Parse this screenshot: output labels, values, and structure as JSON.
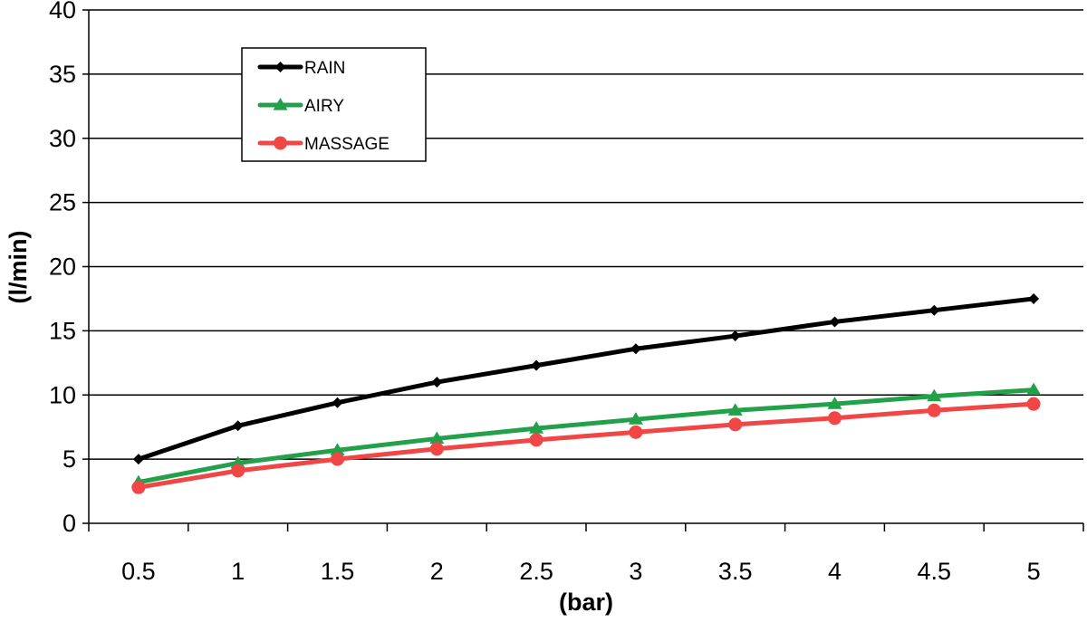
{
  "chart_data": {
    "type": "line",
    "xlabel": "(bar)",
    "ylabel": "(l/min)",
    "categories": [
      "0.5",
      "1",
      "1.5",
      "2",
      "2.5",
      "3",
      "3.5",
      "4",
      "4.5",
      "5"
    ],
    "ylim": [
      0,
      40
    ],
    "yticks": [
      "0",
      "5",
      "10",
      "15",
      "20",
      "25",
      "30",
      "35",
      "40"
    ],
    "grid": "horizontal",
    "legend": "top-left",
    "series": [
      {
        "name": "RAIN",
        "color": "#000000",
        "marker": "diamond",
        "values": [
          5.0,
          7.6,
          9.4,
          11.0,
          12.3,
          13.6,
          14.6,
          15.7,
          16.6,
          17.5
        ]
      },
      {
        "name": "AIRY",
        "color": "#22a04a",
        "marker": "triangle",
        "values": [
          3.2,
          4.7,
          5.7,
          6.6,
          7.4,
          8.1,
          8.8,
          9.3,
          9.9,
          10.4
        ]
      },
      {
        "name": "MASSAGE",
        "color": "#f04646",
        "marker": "circle",
        "values": [
          2.8,
          4.1,
          5.0,
          5.8,
          6.5,
          7.1,
          7.7,
          8.2,
          8.8,
          9.3
        ]
      }
    ]
  }
}
